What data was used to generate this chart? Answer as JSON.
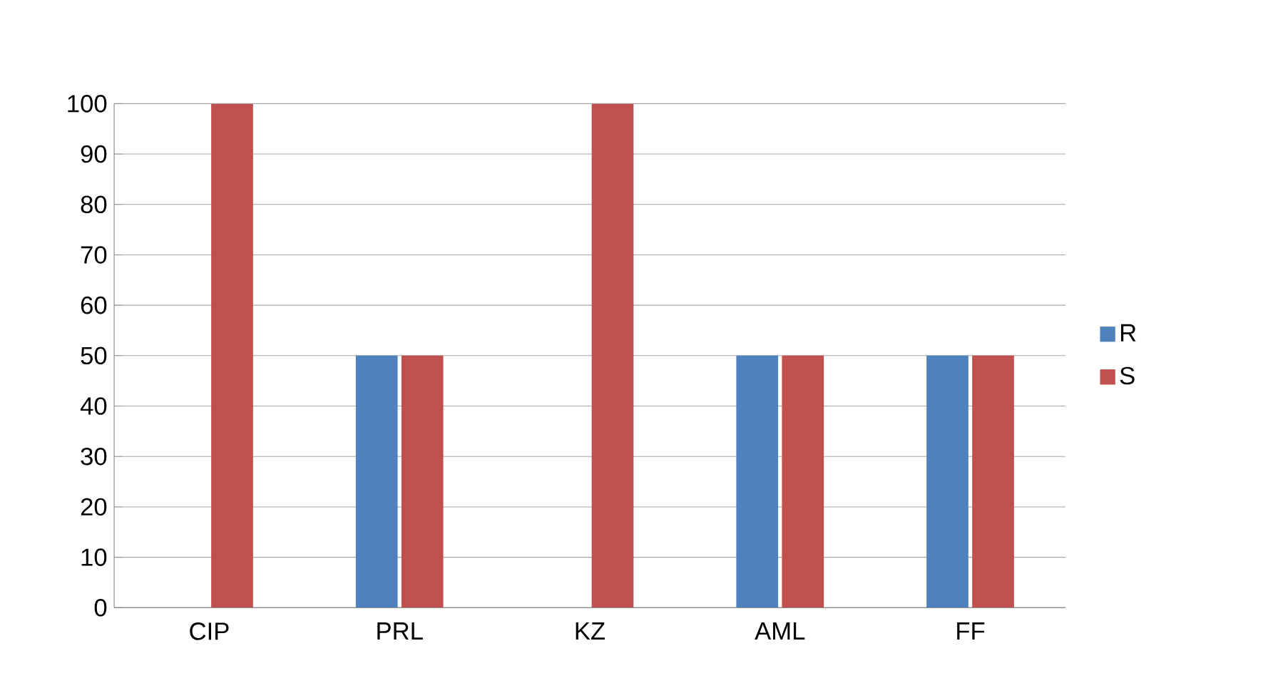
{
  "chart_data": {
    "type": "bar",
    "categories": [
      "CIP",
      "PRL",
      "KZ",
      "AML",
      "FF"
    ],
    "series": [
      {
        "name": "R",
        "color": "#4f81bd",
        "values": [
          0,
          50,
          0,
          50,
          50
        ]
      },
      {
        "name": "S",
        "color": "#c0504d",
        "values": [
          100,
          50,
          100,
          50,
          50
        ]
      }
    ],
    "ylim": [
      0,
      100
    ],
    "yticks": [
      0,
      10,
      20,
      30,
      40,
      50,
      60,
      70,
      80,
      90,
      100
    ],
    "grid": "y",
    "legend": "right"
  }
}
